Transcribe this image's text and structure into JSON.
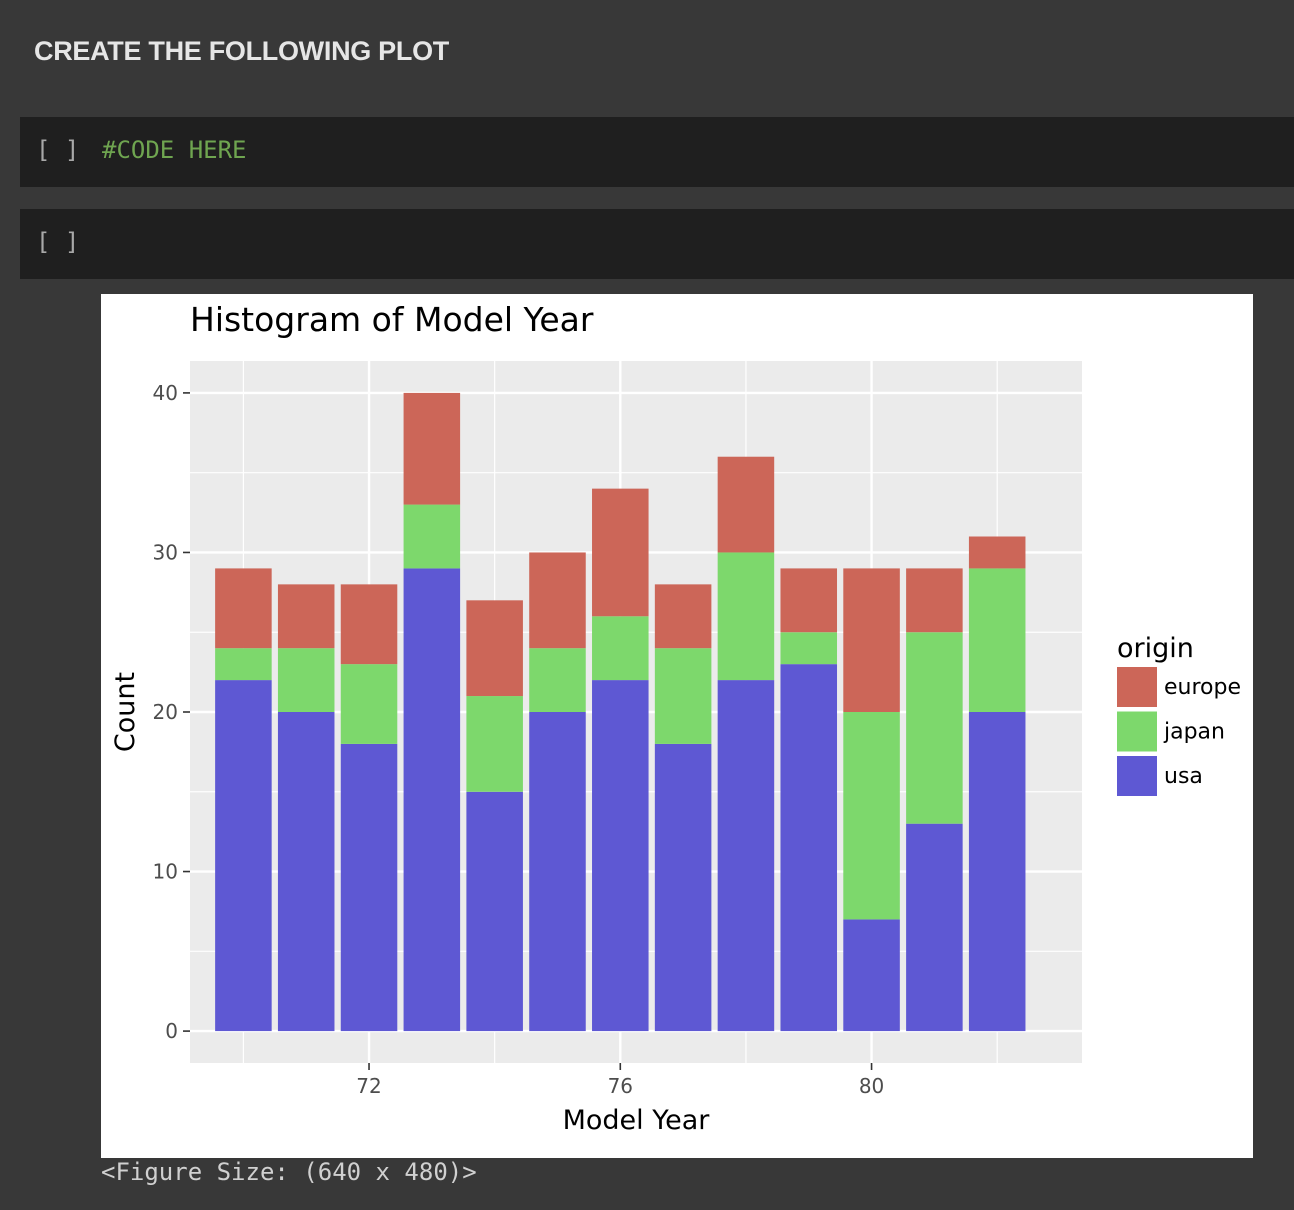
{
  "heading": "CREATE THE FOLLOWING PLOT",
  "cells": [
    {
      "prompt": "[ ]",
      "code": "#CODE HERE"
    },
    {
      "prompt": "[ ]",
      "code": ""
    }
  ],
  "figure_size_text": "<Figure Size: (640 x 480)>",
  "colors": {
    "europe": "#cc6658",
    "japan": "#7dd86c",
    "usa": "#5e58d3",
    "panel_bg": "#ebebeb",
    "grid": "#ffffff"
  },
  "chart_data": {
    "type": "bar",
    "title": "Histogram of Model Year",
    "xlabel": "Model Year",
    "ylabel": "Count",
    "x": [
      70,
      71,
      72,
      73,
      74,
      75,
      76,
      77,
      78,
      79,
      80,
      81,
      82
    ],
    "series": [
      {
        "name": "usa",
        "values": [
          22,
          20,
          18,
          29,
          15,
          20,
          22,
          18,
          22,
          23,
          7,
          13,
          20
        ]
      },
      {
        "name": "japan",
        "values": [
          2,
          4,
          5,
          4,
          6,
          4,
          4,
          6,
          8,
          2,
          13,
          12,
          9
        ]
      },
      {
        "name": "europe",
        "values": [
          5,
          4,
          5,
          7,
          6,
          6,
          8,
          4,
          6,
          4,
          9,
          4,
          2
        ]
      }
    ],
    "stacked": true,
    "xticks": [
      72,
      76,
      80
    ],
    "yticks": [
      0,
      10,
      20,
      30,
      40
    ],
    "xlim": [
      69.15,
      83.35
    ],
    "ylim": [
      -2,
      42
    ],
    "legend": {
      "title": "origin",
      "entries": [
        "europe",
        "japan",
        "usa"
      ],
      "placement": "right"
    },
    "grid": true
  }
}
